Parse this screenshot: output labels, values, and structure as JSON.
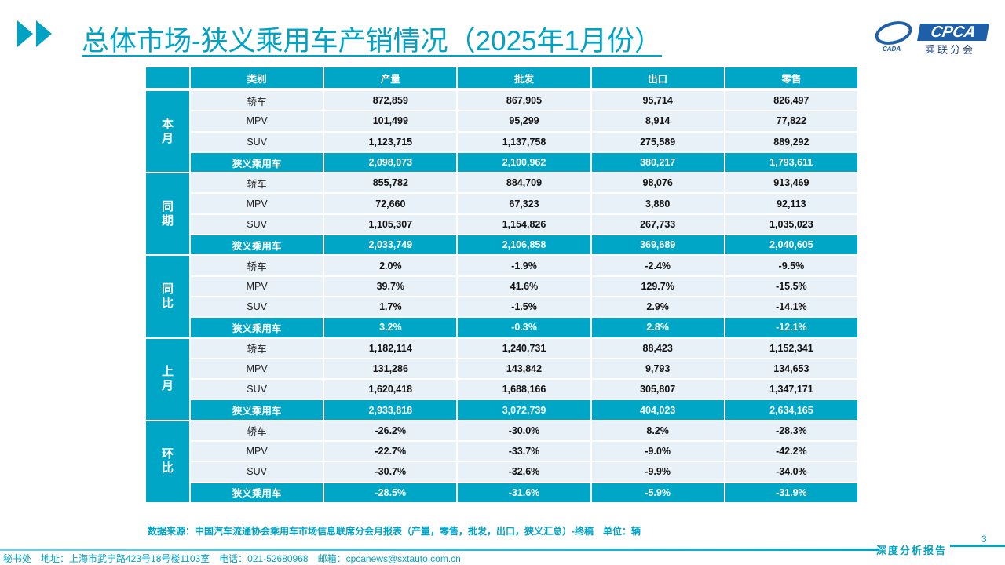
{
  "title": "总体市场-狭义乘用车产销情况（2025年1月份）",
  "logo": {
    "text": "CPCA",
    "cn": "乘联分会",
    "en": "CADA"
  },
  "colors": {
    "accent": "#00a6c6",
    "row_bg": "#e8f0f8",
    "logo_blue": "#1d5fa8"
  },
  "table": {
    "headers": [
      "",
      "类别",
      "产量",
      "批发",
      "出口",
      "零售"
    ],
    "groups": [
      {
        "label": "本月",
        "rows": [
          [
            "轿车",
            "872,859",
            "867,905",
            "95,714",
            "826,497"
          ],
          [
            "MPV",
            "101,499",
            "95,299",
            "8,914",
            "77,822"
          ],
          [
            "SUV",
            "1,123,715",
            "1,137,758",
            "275,589",
            "889,292"
          ],
          [
            "狭义乘用车",
            "2,098,073",
            "2,100,962",
            "380,217",
            "1,793,611"
          ]
        ]
      },
      {
        "label": "同期",
        "rows": [
          [
            "轿车",
            "855,782",
            "884,709",
            "98,076",
            "913,469"
          ],
          [
            "MPV",
            "72,660",
            "67,323",
            "3,880",
            "92,113"
          ],
          [
            "SUV",
            "1,105,307",
            "1,154,826",
            "267,733",
            "1,035,023"
          ],
          [
            "狭义乘用车",
            "2,033,749",
            "2,106,858",
            "369,689",
            "2,040,605"
          ]
        ]
      },
      {
        "label": "同比",
        "rows": [
          [
            "轿车",
            "2.0%",
            "-1.9%",
            "-2.4%",
            "-9.5%"
          ],
          [
            "MPV",
            "39.7%",
            "41.6%",
            "129.7%",
            "-15.5%"
          ],
          [
            "SUV",
            "1.7%",
            "-1.5%",
            "2.9%",
            "-14.1%"
          ],
          [
            "狭义乘用车",
            "3.2%",
            "-0.3%",
            "2.8%",
            "-12.1%"
          ]
        ]
      },
      {
        "label": "上月",
        "rows": [
          [
            "轿车",
            "1,182,114",
            "1,240,731",
            "88,423",
            "1,152,341"
          ],
          [
            "MPV",
            "131,286",
            "143,842",
            "9,793",
            "134,653"
          ],
          [
            "SUV",
            "1,620,418",
            "1,688,166",
            "305,807",
            "1,347,171"
          ],
          [
            "狭义乘用车",
            "2,933,818",
            "3,072,739",
            "404,023",
            "2,634,165"
          ]
        ]
      },
      {
        "label": "环比",
        "rows": [
          [
            "轿车",
            "-26.2%",
            "-30.0%",
            "8.2%",
            "-28.3%"
          ],
          [
            "MPV",
            "-22.7%",
            "-33.7%",
            "-9.0%",
            "-42.2%"
          ],
          [
            "SUV",
            "-30.7%",
            "-32.6%",
            "-9.9%",
            "-34.0%"
          ],
          [
            "狭义乘用车",
            "-28.5%",
            "-31.6%",
            "-5.9%",
            "-31.9%"
          ]
        ]
      }
    ]
  },
  "source": "数据来源：中国汽车流通协会乘用车市场信息联席分会月报表（产量，零售，批发，出口，狭义汇总）-终稿　单位：辆",
  "page_number": "3",
  "report_tag": "深度分析报告",
  "footer": "秘书处　地址：上海市武宁路423号18号楼1103室　电话：021-52680968　邮箱：cpcanews@sxtauto.com.cn"
}
